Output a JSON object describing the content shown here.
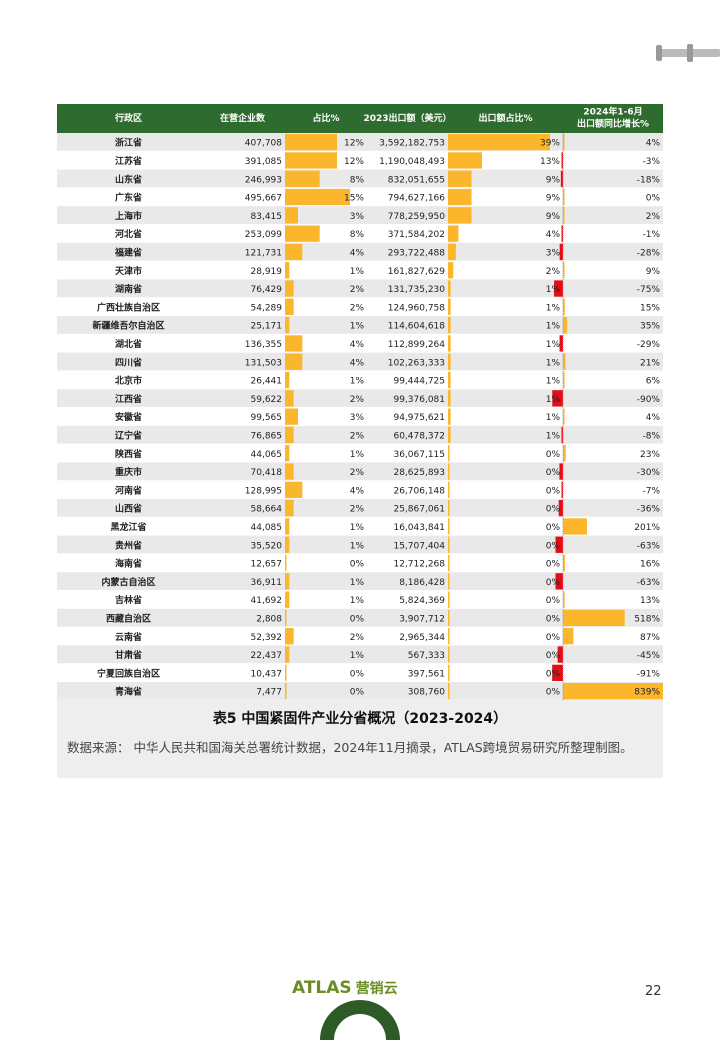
{
  "table": {
    "header": [
      "行政区",
      "在营企业数",
      "占比%",
      "2023出口额（美元）",
      "出口额占比%",
      [
        "2024年1-6月",
        "出口额同比增长%"
      ]
    ],
    "rows": [
      [
        "浙江省",
        "407,708",
        "12%",
        "3,592,182,753",
        "39%",
        "4%"
      ],
      [
        "江苏省",
        "391,085",
        "12%",
        "1,190,048,493",
        "13%",
        "-3%"
      ],
      [
        "山东省",
        "246,993",
        "8%",
        "832,051,655",
        "9%",
        "-18%"
      ],
      [
        "广东省",
        "495,667",
        "15%",
        "794,627,166",
        "9%",
        "0%"
      ],
      [
        "上海市",
        "83,415",
        "3%",
        "778,259,950",
        "9%",
        "2%"
      ],
      [
        "河北省",
        "253,099",
        "8%",
        "371,584,202",
        "4%",
        "-1%"
      ],
      [
        "福建省",
        "121,731",
        "4%",
        "293,722,488",
        "3%",
        "-28%"
      ],
      [
        "天津市",
        "28,919",
        "1%",
        "161,827,629",
        "2%",
        "9%"
      ],
      [
        "湖南省",
        "76,429",
        "2%",
        "131,735,230",
        "1%",
        "-75%"
      ],
      [
        "广西壮族自治区",
        "54,289",
        "2%",
        "124,960,758",
        "1%",
        "15%"
      ],
      [
        "新疆维吾尔自治区",
        "25,171",
        "1%",
        "114,604,618",
        "1%",
        "35%"
      ],
      [
        "湖北省",
        "136,355",
        "4%",
        "112,899,264",
        "1%",
        "-29%"
      ],
      [
        "四川省",
        "131,503",
        "4%",
        "102,263,333",
        "1%",
        "21%"
      ],
      [
        "北京市",
        "26,441",
        "1%",
        "99,444,725",
        "1%",
        "6%"
      ],
      [
        "江西省",
        "59,622",
        "2%",
        "99,376,081",
        "1%",
        "-90%"
      ],
      [
        "安徽省",
        "99,565",
        "3%",
        "94,975,621",
        "1%",
        "4%"
      ],
      [
        "辽宁省",
        "76,865",
        "2%",
        "60,478,372",
        "1%",
        "-8%"
      ],
      [
        "陕西省",
        "44,065",
        "1%",
        "36,067,115",
        "0%",
        "23%"
      ],
      [
        "重庆市",
        "70,418",
        "2%",
        "28,625,893",
        "0%",
        "-30%"
      ],
      [
        "河南省",
        "128,995",
        "4%",
        "26,706,148",
        "0%",
        "-7%"
      ],
      [
        "山西省",
        "58,664",
        "2%",
        "25,867,061",
        "0%",
        "-36%"
      ],
      [
        "黑龙江省",
        "44,085",
        "1%",
        "16,043,841",
        "0%",
        "201%"
      ],
      [
        "贵州省",
        "35,520",
        "1%",
        "15,707,404",
        "0%",
        "-63%"
      ],
      [
        "海南省",
        "12,657",
        "0%",
        "12,712,268",
        "0%",
        "16%"
      ],
      [
        "内蒙古自治区",
        "36,911",
        "1%",
        "8,186,428",
        "0%",
        "-63%"
      ],
      [
        "吉林省",
        "41,692",
        "1%",
        "5,824,369",
        "0%",
        "13%"
      ],
      [
        "西藏自治区",
        "2,808",
        "0%",
        "3,907,712",
        "0%",
        "518%"
      ],
      [
        "云南省",
        "52,392",
        "2%",
        "2,965,344",
        "0%",
        "87%"
      ],
      [
        "甘肃省",
        "22,437",
        "1%",
        "567,333",
        "0%",
        "-45%"
      ],
      [
        "宁夏回族自治区",
        "10,437",
        "0%",
        "397,561",
        "0%",
        "-91%"
      ],
      [
        "青海省",
        "7,477",
        "0%",
        "308,760",
        "0%",
        "839%"
      ]
    ]
  },
  "caption": "表5 中国紧固件产业分省概况（2023-2024）",
  "source": "数据来源：  中华人民共和国海关总署统计数据，2024年11月摘录，ATLAS跨境贸易研究所整理制图。",
  "footer": {
    "logo": "ATLAS",
    "logo_suffix": "营销云",
    "page": "22"
  }
}
